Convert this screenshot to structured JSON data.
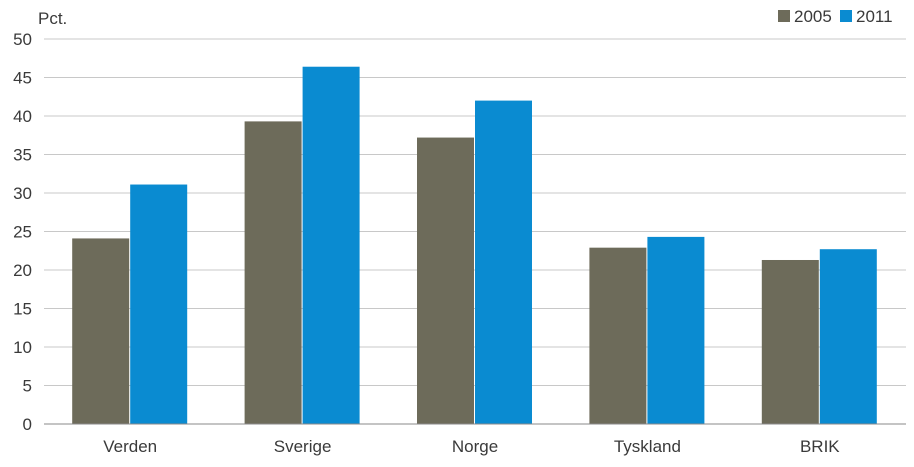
{
  "chart_data": {
    "type": "bar",
    "title": "",
    "ylabel": "Pct.",
    "xlabel": "",
    "categories": [
      "Verden",
      "Sverige",
      "Norge",
      "Tyskland",
      "BRIK"
    ],
    "series": [
      {
        "name": "2005",
        "color": "#6d6b5a",
        "values": [
          24.1,
          39.3,
          37.2,
          22.9,
          21.3
        ]
      },
      {
        "name": "2011",
        "color": "#0a8bd1",
        "values": [
          31.1,
          46.4,
          42.0,
          24.3,
          22.7
        ]
      }
    ],
    "ylim": [
      0,
      50
    ],
    "yticks": [
      "0",
      "5",
      "10",
      "15",
      "20",
      "25",
      "30",
      "35",
      "40",
      "45",
      "50"
    ],
    "grid": true,
    "legend_position": "top-right"
  }
}
